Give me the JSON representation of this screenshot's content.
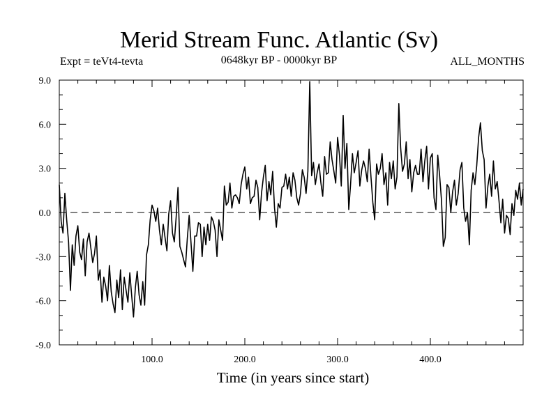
{
  "chart_data": {
    "type": "line",
    "title": "Merid Stream Func. Atlantic (Sv)",
    "subtitle_left": "Expt = teVt4-tevta",
    "subtitle_center": "0648kyr BP - 0000kyr BP",
    "subtitle_right": "ALL_MONTHS",
    "xlabel": "Time (in years since start)",
    "ylabel": "",
    "xlim": [
      0,
      500
    ],
    "ylim": [
      -9.0,
      9.0
    ],
    "x_ticks": [
      100.0,
      200.0,
      300.0,
      400.0
    ],
    "x_tick_labels": [
      "100.0",
      "200.0",
      "300.0",
      "400.0"
    ],
    "y_ticks": [
      -9.0,
      -6.0,
      -3.0,
      0.0,
      3.0,
      6.0,
      9.0
    ],
    "y_tick_labels": [
      "-9.0",
      "-6.0",
      "-3.0",
      "0.0",
      "3.0",
      "6.0",
      "9.0"
    ],
    "reference_line": {
      "y": 0.0,
      "style": "dashed"
    },
    "grid": false,
    "series": [
      {
        "x": [
          0,
          2,
          4,
          6,
          8,
          10,
          12,
          14,
          16,
          18,
          20,
          22,
          24,
          26,
          28,
          30,
          32,
          34,
          36,
          38,
          40,
          42,
          44,
          46,
          48,
          50,
          52,
          54,
          56,
          58,
          60,
          62,
          64,
          66,
          68,
          70,
          72,
          74,
          76,
          78,
          80,
          82,
          84,
          86,
          88,
          90,
          92,
          94,
          96,
          98,
          100,
          102,
          104,
          106,
          108,
          110,
          112,
          114,
          116,
          118,
          120,
          122,
          124,
          126,
          128,
          130,
          132,
          134,
          136,
          138,
          140,
          142,
          144,
          146,
          148,
          150,
          152,
          154,
          156,
          158,
          160,
          162,
          164,
          166,
          168,
          170,
          172,
          174,
          176,
          178,
          180,
          182,
          184,
          186,
          188,
          190,
          192,
          194,
          196,
          198,
          200,
          202,
          204,
          206,
          208,
          210,
          212,
          214,
          216,
          218,
          220,
          222,
          224,
          226,
          228,
          230,
          232,
          234,
          236,
          238,
          240,
          242,
          244,
          246,
          248,
          250,
          252,
          254,
          256,
          258,
          260,
          262,
          264,
          266,
          268,
          270,
          272,
          274,
          276,
          278,
          280,
          282,
          284,
          286,
          288,
          290,
          292,
          294,
          296,
          298,
          300,
          302,
          304,
          306,
          308,
          310,
          312,
          314,
          316,
          318,
          320,
          322,
          324,
          326,
          328,
          330,
          332,
          334,
          336,
          338,
          340,
          342,
          344,
          346,
          348,
          350,
          352,
          354,
          356,
          358,
          360,
          362,
          364,
          366,
          368,
          370,
          372,
          374,
          376,
          378,
          380,
          382,
          384,
          386,
          388,
          390,
          392,
          394,
          396,
          398,
          400,
          402,
          404,
          406,
          408,
          410,
          412,
          414,
          416,
          418,
          420,
          422,
          424,
          426,
          428,
          430,
          432,
          434,
          436,
          438,
          440,
          442,
          444,
          446,
          448,
          450,
          452,
          454,
          456,
          458,
          460,
          462,
          464,
          466,
          468,
          470,
          472,
          474,
          476,
          478,
          480,
          482,
          484,
          486,
          488,
          490,
          492,
          494,
          496,
          498,
          500
        ],
        "values": [
          1.9,
          -0.6,
          -1.4,
          1.3,
          -0.5,
          -2.0,
          -5.3,
          -2.2,
          -3.6,
          -1.6,
          -0.9,
          -2.7,
          -3.2,
          -1.8,
          -4.3,
          -2.0,
          -1.4,
          -2.4,
          -3.4,
          -2.8,
          -1.6,
          -4.6,
          -3.9,
          -6.1,
          -4.4,
          -5.0,
          -6.0,
          -3.6,
          -5.4,
          -6.2,
          -6.8,
          -4.6,
          -5.8,
          -3.9,
          -6.6,
          -4.4,
          -5.3,
          -6.1,
          -4.1,
          -5.6,
          -7.1,
          -5.1,
          -4.0,
          -5.6,
          -6.3,
          -4.7,
          -6.3,
          -2.9,
          -2.2,
          -0.5,
          0.5,
          0.1,
          -0.6,
          0.3,
          -1.2,
          -2.2,
          -0.8,
          -1.7,
          -2.6,
          -0.1,
          0.8,
          -1.4,
          -2.0,
          -0.3,
          1.7,
          -2.3,
          -2.7,
          -3.2,
          -3.7,
          -1.8,
          -0.2,
          -2.1,
          -4.0,
          -1.6,
          -1.6,
          -0.7,
          -0.8,
          -3.0,
          -1.0,
          -2.2,
          -0.8,
          -1.9,
          -0.3,
          -0.6,
          -1.2,
          -3.0,
          -0.5,
          -1.2,
          -1.9,
          1.8,
          0.5,
          0.7,
          2.0,
          0.3,
          1.1,
          1.2,
          1.0,
          0.6,
          1.9,
          2.6,
          3.1,
          1.6,
          2.4,
          0.6,
          1.0,
          1.1,
          2.2,
          1.7,
          -0.5,
          1.3,
          2.4,
          3.2,
          0.8,
          2.1,
          1.2,
          2.8,
          0.3,
          -1.0,
          0.6,
          0.3,
          1.7,
          1.8,
          2.6,
          1.6,
          2.4,
          1.1,
          2.7,
          2.2,
          1.0,
          0.5,
          1.3,
          2.9,
          2.4,
          1.3,
          2.8,
          8.9,
          2.5,
          3.4,
          1.9,
          2.7,
          3.3,
          2.0,
          1.1,
          3.8,
          2.6,
          2.7,
          4.8,
          3.6,
          2.8,
          2.0,
          5.1,
          3.9,
          1.8,
          6.6,
          3.0,
          4.7,
          0.2,
          1.9,
          4.0,
          2.7,
          3.4,
          4.2,
          1.8,
          2.9,
          3.5,
          3.0,
          2.1,
          4.3,
          2.4,
          0.7,
          -0.5,
          3.3,
          2.6,
          3.0,
          4.0,
          1.9,
          2.7,
          0.5,
          3.4,
          2.3,
          3.5,
          1.6,
          2.4,
          7.4,
          4.4,
          2.8,
          3.3,
          4.8,
          2.3,
          3.6,
          1.4,
          2.7,
          3.2,
          2.6,
          2.6,
          4.3,
          2.1,
          3.5,
          4.5,
          1.6,
          3.7,
          4.0,
          1.0,
          0.2,
          3.9,
          2.5,
          0.8,
          -2.3,
          -1.7,
          1.9,
          1.7,
          0.0,
          1.4,
          2.2,
          0.5,
          1.3,
          2.9,
          3.4,
          0.3,
          -0.6,
          0.0,
          -2.2,
          1.5,
          2.7,
          1.9,
          3.2,
          5.1,
          6.1,
          4.2,
          3.6,
          0.3,
          1.8,
          2.6,
          1.1,
          3.5,
          1.6,
          2.1,
          0.8,
          -0.7,
          0.9,
          -1.4,
          -0.2,
          -0.4,
          -1.5,
          0.6,
          -0.2,
          1.5,
          0.9,
          2.0,
          0.5,
          1.6
        ]
      }
    ]
  }
}
